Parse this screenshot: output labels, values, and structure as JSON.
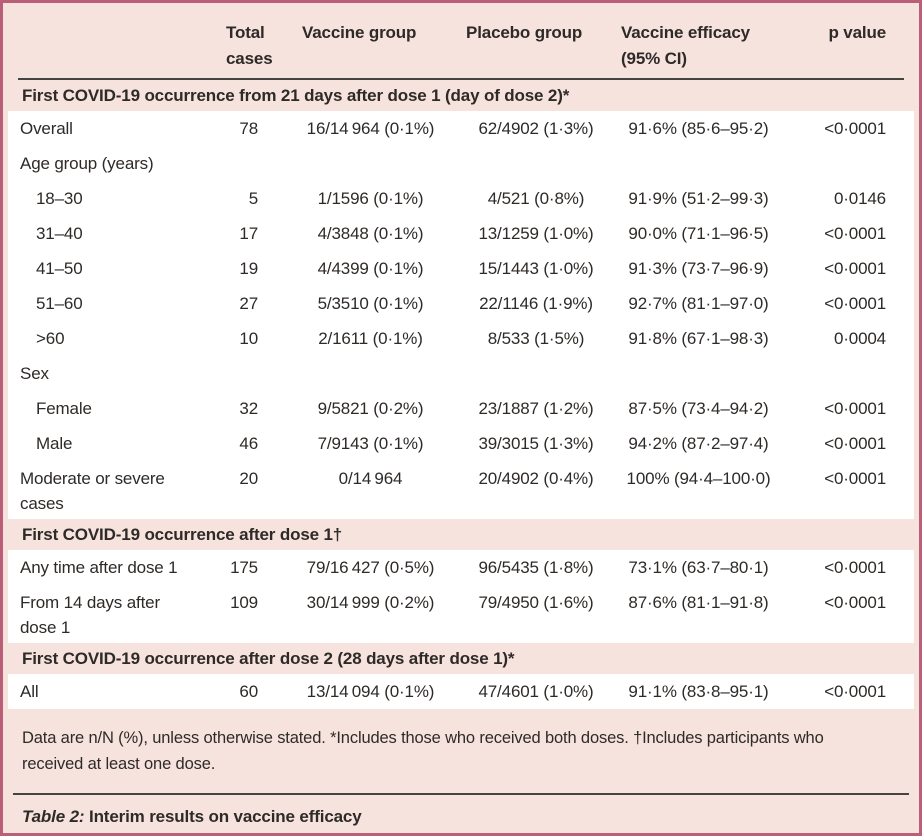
{
  "header": {
    "columns": [
      "",
      "Total\ncases",
      "Vaccine group",
      "Placebo group",
      "Vaccine efficacy\n(95% CI)",
      "p value"
    ]
  },
  "sections": [
    {
      "title": "First COVID-19 occurrence from 21 days after dose 1 (day of dose 2)*",
      "rows": [
        {
          "label": "Overall",
          "indent": false,
          "total": "78",
          "vaccine": "16/14 964 (0·1%)",
          "placebo": "62/4902 (1·3%)",
          "efficacy": "91·6% (85·6–95·2)",
          "p": "<0·0001"
        },
        {
          "label": "Age group (years)",
          "indent": false,
          "total": "",
          "vaccine": "",
          "placebo": "",
          "efficacy": "",
          "p": ""
        },
        {
          "label": "18–30",
          "indent": true,
          "total": "5",
          "vaccine": "1/1596 (0·1%)",
          "placebo": "4/521 (0·8%)",
          "efficacy": "91·9% (51·2–99·3)",
          "p": "0·0146"
        },
        {
          "label": "31–40",
          "indent": true,
          "total": "17",
          "vaccine": "4/3848 (0·1%)",
          "placebo": "13/1259 (1·0%)",
          "efficacy": "90·0% (71·1–96·5)",
          "p": "<0·0001"
        },
        {
          "label": "41–50",
          "indent": true,
          "total": "19",
          "vaccine": "4/4399 (0·1%)",
          "placebo": "15/1443 (1·0%)",
          "efficacy": "91·3% (73·7–96·9)",
          "p": "<0·0001"
        },
        {
          "label": "51–60",
          "indent": true,
          "total": "27",
          "vaccine": "5/3510 (0·1%)",
          "placebo": "22/1146 (1·9%)",
          "efficacy": "92·7% (81·1–97·0)",
          "p": "<0·0001"
        },
        {
          "label": ">60",
          "indent": true,
          "total": "10",
          "vaccine": "2/1611 (0·1%)",
          "placebo": "8/533 (1·5%)",
          "efficacy": "91·8% (67·1–98·3)",
          "p": "0·0004"
        },
        {
          "label": "Sex",
          "indent": false,
          "total": "",
          "vaccine": "",
          "placebo": "",
          "efficacy": "",
          "p": ""
        },
        {
          "label": "Female",
          "indent": true,
          "total": "32",
          "vaccine": "9/5821 (0·2%)",
          "placebo": "23/1887 (1·2%)",
          "efficacy": "87·5% (73·4–94·2)",
          "p": "<0·0001"
        },
        {
          "label": "Male",
          "indent": true,
          "total": "46",
          "vaccine": "7/9143 (0·1%)",
          "placebo": "39/3015 (1·3%)",
          "efficacy": "94·2% (87·2–97·4)",
          "p": "<0·0001"
        },
        {
          "label": "Moderate or severe\ncases",
          "indent": false,
          "total": "20",
          "vaccine": "0/14 964",
          "placebo": "20/4902 (0·4%)",
          "efficacy": "100% (94·4–100·0)",
          "p": "<0·0001"
        }
      ]
    },
    {
      "title": "First COVID-19 occurrence after dose 1†",
      "rows": [
        {
          "label": "Any time after dose 1",
          "indent": false,
          "total": "175",
          "vaccine": "79/16 427 (0·5%)",
          "placebo": "96/5435 (1·8%)",
          "efficacy": "73·1% (63·7–80·1)",
          "p": "<0·0001"
        },
        {
          "label": "From 14 days after\ndose 1",
          "indent": false,
          "total": "109",
          "vaccine": "30/14 999 (0·2%)",
          "placebo": "79/4950 (1·6%)",
          "efficacy": "87·6% (81·1–91·8)",
          "p": "<0·0001"
        }
      ]
    },
    {
      "title": "First COVID-19 occurrence after dose 2 (28 days after dose 1)*",
      "rows": [
        {
          "label": "All",
          "indent": false,
          "total": "60",
          "vaccine": "13/14 094 (0·1%)",
          "placebo": "47/4601 (1·0%)",
          "efficacy": "91·1% (83·8–95·1)",
          "p": "<0·0001"
        }
      ]
    }
  ],
  "footnote": "Data are n/N (%), unless otherwise stated. *Includes those who received both doses. †Includes participants who\nreceived at least one dose.",
  "caption": {
    "label": "Table 2:",
    "text": " Interim results on vaccine efficacy"
  },
  "colors": {
    "frame_border": "#b95f78",
    "page_background": "#f7e3de",
    "row_background": "#ffffff",
    "text": "#2e2a27",
    "rule": "#474340"
  }
}
